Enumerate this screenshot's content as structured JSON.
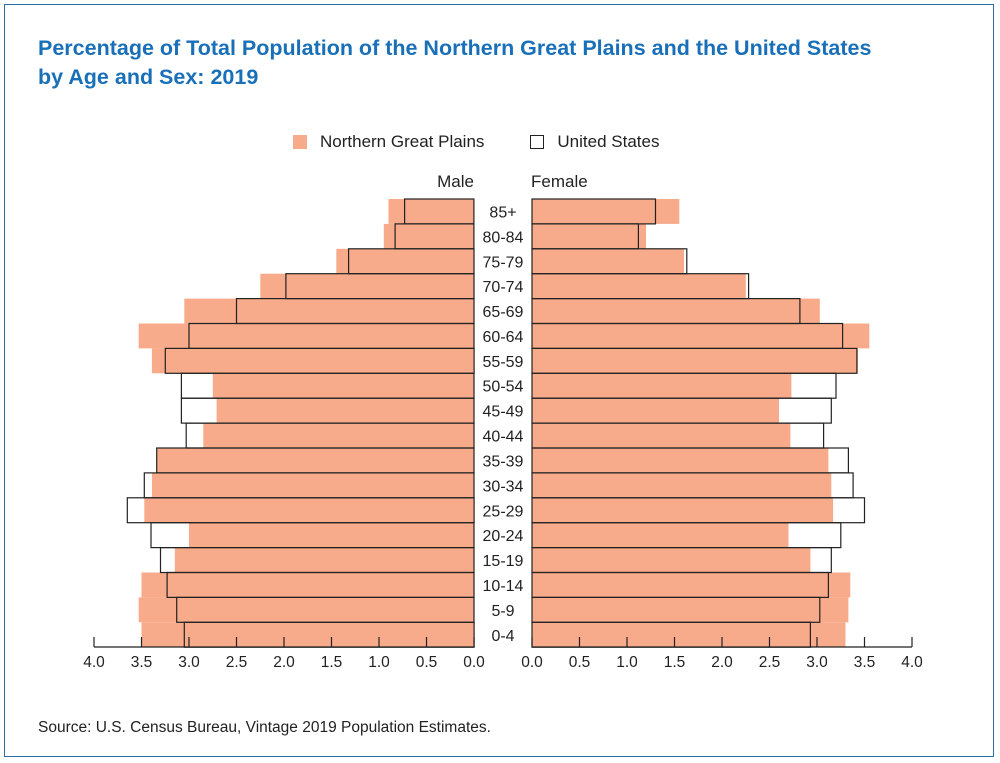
{
  "title": "Percentage of Total Population of the Northern Great Plains and the United States by Age and Sex: 2019",
  "legend": {
    "ngp_label": "Northern Great Plains",
    "us_label": "United States"
  },
  "source": "Source: U.S. Census Bureau, Vintage 2019 Population Estimates.",
  "colors": {
    "ngp": "#f7ab8a",
    "us_outline": "#222222",
    "title": "#1a70b8",
    "frame": "#2e6da4"
  },
  "chart_data": {
    "type": "bar",
    "orientation": "population-pyramid",
    "title": "Percentage of Total Population of the Northern Great Plains and the United States by Age and Sex: 2019",
    "left_label": "Male",
    "right_label": "Female",
    "categories": [
      "0-4",
      "5-9",
      "10-14",
      "15-19",
      "20-24",
      "25-29",
      "30-34",
      "35-39",
      "40-44",
      "45-49",
      "50-54",
      "55-59",
      "60-64",
      "65-69",
      "70-74",
      "75-79",
      "80-84",
      "85+"
    ],
    "xlim": [
      0,
      4.0
    ],
    "xticks": [
      "4.0",
      "3.5",
      "3.0",
      "2.5",
      "2.0",
      "1.5",
      "1.0",
      "0.5",
      "0.0"
    ],
    "xticks_right": [
      "0.0",
      "0.5",
      "1.0",
      "1.5",
      "2.0",
      "2.5",
      "3.0",
      "3.5",
      "4.0"
    ],
    "series": [
      {
        "name": "Northern Great Plains",
        "side": "male",
        "values": [
          3.5,
          3.53,
          3.5,
          3.15,
          3.0,
          3.47,
          3.39,
          3.34,
          2.85,
          2.71,
          2.75,
          3.39,
          3.53,
          3.05,
          2.25,
          1.45,
          0.95,
          0.9
        ]
      },
      {
        "name": "United States",
        "side": "male",
        "values": [
          3.05,
          3.13,
          3.23,
          3.3,
          3.4,
          3.65,
          3.47,
          3.34,
          3.03,
          3.08,
          3.08,
          3.25,
          3.0,
          2.5,
          1.98,
          1.32,
          0.83,
          0.73
        ]
      },
      {
        "name": "Northern Great Plains",
        "side": "female",
        "values": [
          3.3,
          3.33,
          3.35,
          2.93,
          2.7,
          3.17,
          3.15,
          3.12,
          2.72,
          2.6,
          2.73,
          3.43,
          3.55,
          3.03,
          2.25,
          1.6,
          1.2,
          1.55
        ]
      },
      {
        "name": "United States",
        "side": "female",
        "values": [
          2.93,
          3.03,
          3.12,
          3.15,
          3.25,
          3.5,
          3.38,
          3.33,
          3.07,
          3.15,
          3.2,
          3.42,
          3.27,
          2.82,
          2.28,
          1.63,
          1.12,
          1.3
        ]
      }
    ]
  }
}
